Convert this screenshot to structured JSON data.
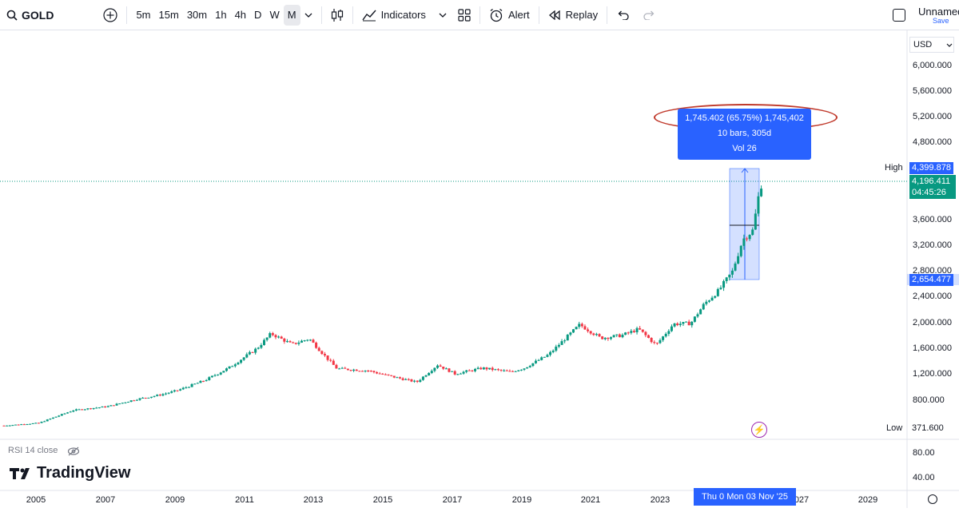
{
  "toolbar": {
    "symbol": "GOLD",
    "intervals": [
      "5m",
      "15m",
      "30m",
      "1h",
      "4h",
      "D",
      "W",
      "M"
    ],
    "active_interval": "M",
    "indicators": "Indicators",
    "alert": "Alert",
    "replay": "Replay",
    "layout_name": "Unnamed",
    "save": "Save"
  },
  "chart": {
    "currency": "USD",
    "y_ticks": [
      "6,000.000",
      "5,600.000",
      "5,200.000",
      "4,800.000",
      "3,600.000",
      "3,200.000",
      "2,800.000",
      "2,400.000",
      "2,000.000",
      "1,600.000",
      "1,200.000",
      "800.000"
    ],
    "x_ticks": [
      "2005",
      "2007",
      "2009",
      "2011",
      "2013",
      "2015",
      "2017",
      "2019",
      "2021",
      "2023",
      "027",
      "2029"
    ],
    "high_label": "High",
    "high_value": "4,399.878",
    "current_price": "4,196.411",
    "countdown": "04:45:26",
    "measure_low": "2,654.477",
    "low_label": "Low",
    "low_value": "371.600",
    "date_label": "Thu 0   Mon 03 Nov '25"
  },
  "measure": {
    "line1": "1,745.402 (65.75%) 1,745,402",
    "line2": "10 bars, 305d",
    "line3": "Vol 26"
  },
  "rsi": {
    "label": "RSI 14 close",
    "ticks": [
      "80.00",
      "40.00"
    ]
  },
  "brand": "TradingView",
  "colors": {
    "up": "#089981",
    "down": "#f23645",
    "accent": "#2962ff",
    "highlight": "#c0392b"
  },
  "chart_data": {
    "type": "candlestick",
    "x_range": [
      2004.0,
      2030.0
    ],
    "y_range": [
      371.6,
      6300
    ],
    "series": [
      {
        "x": 2004.0,
        "y": 390
      },
      {
        "x": 2005.0,
        "y": 430
      },
      {
        "x": 2006.0,
        "y": 630
      },
      {
        "x": 2007.0,
        "y": 690
      },
      {
        "x": 2007.8,
        "y": 800
      },
      {
        "x": 2008.5,
        "y": 870
      },
      {
        "x": 2009.0,
        "y": 940
      },
      {
        "x": 2009.8,
        "y": 1100
      },
      {
        "x": 2010.5,
        "y": 1300
      },
      {
        "x": 2011.3,
        "y": 1600
      },
      {
        "x": 2011.7,
        "y": 1830
      },
      {
        "x": 2012.3,
        "y": 1660
      },
      {
        "x": 2012.8,
        "y": 1750
      },
      {
        "x": 2013.3,
        "y": 1450
      },
      {
        "x": 2013.6,
        "y": 1280
      },
      {
        "x": 2014.5,
        "y": 1250
      },
      {
        "x": 2015.0,
        "y": 1180
      },
      {
        "x": 2015.9,
        "y": 1070
      },
      {
        "x": 2016.5,
        "y": 1340
      },
      {
        "x": 2017.0,
        "y": 1200
      },
      {
        "x": 2017.8,
        "y": 1290
      },
      {
        "x": 2018.6,
        "y": 1230
      },
      {
        "x": 2019.0,
        "y": 1290
      },
      {
        "x": 2019.7,
        "y": 1500
      },
      {
        "x": 2020.6,
        "y": 1970
      },
      {
        "x": 2021.2,
        "y": 1760
      },
      {
        "x": 2021.8,
        "y": 1800
      },
      {
        "x": 2022.3,
        "y": 1900
      },
      {
        "x": 2022.8,
        "y": 1650
      },
      {
        "x": 2023.3,
        "y": 1980
      },
      {
        "x": 2023.8,
        "y": 1990
      },
      {
        "x": 2024.2,
        "y": 2300
      },
      {
        "x": 2024.6,
        "y": 2500
      },
      {
        "x": 2025.0,
        "y": 2800
      },
      {
        "x": 2025.3,
        "y": 3300
      },
      {
        "x": 2025.6,
        "y": 3450
      },
      {
        "x": 2025.8,
        "y": 4100
      },
      {
        "x": 2025.9,
        "y": 4196
      }
    ],
    "rsi_ticks": [
      80,
      40
    ]
  }
}
